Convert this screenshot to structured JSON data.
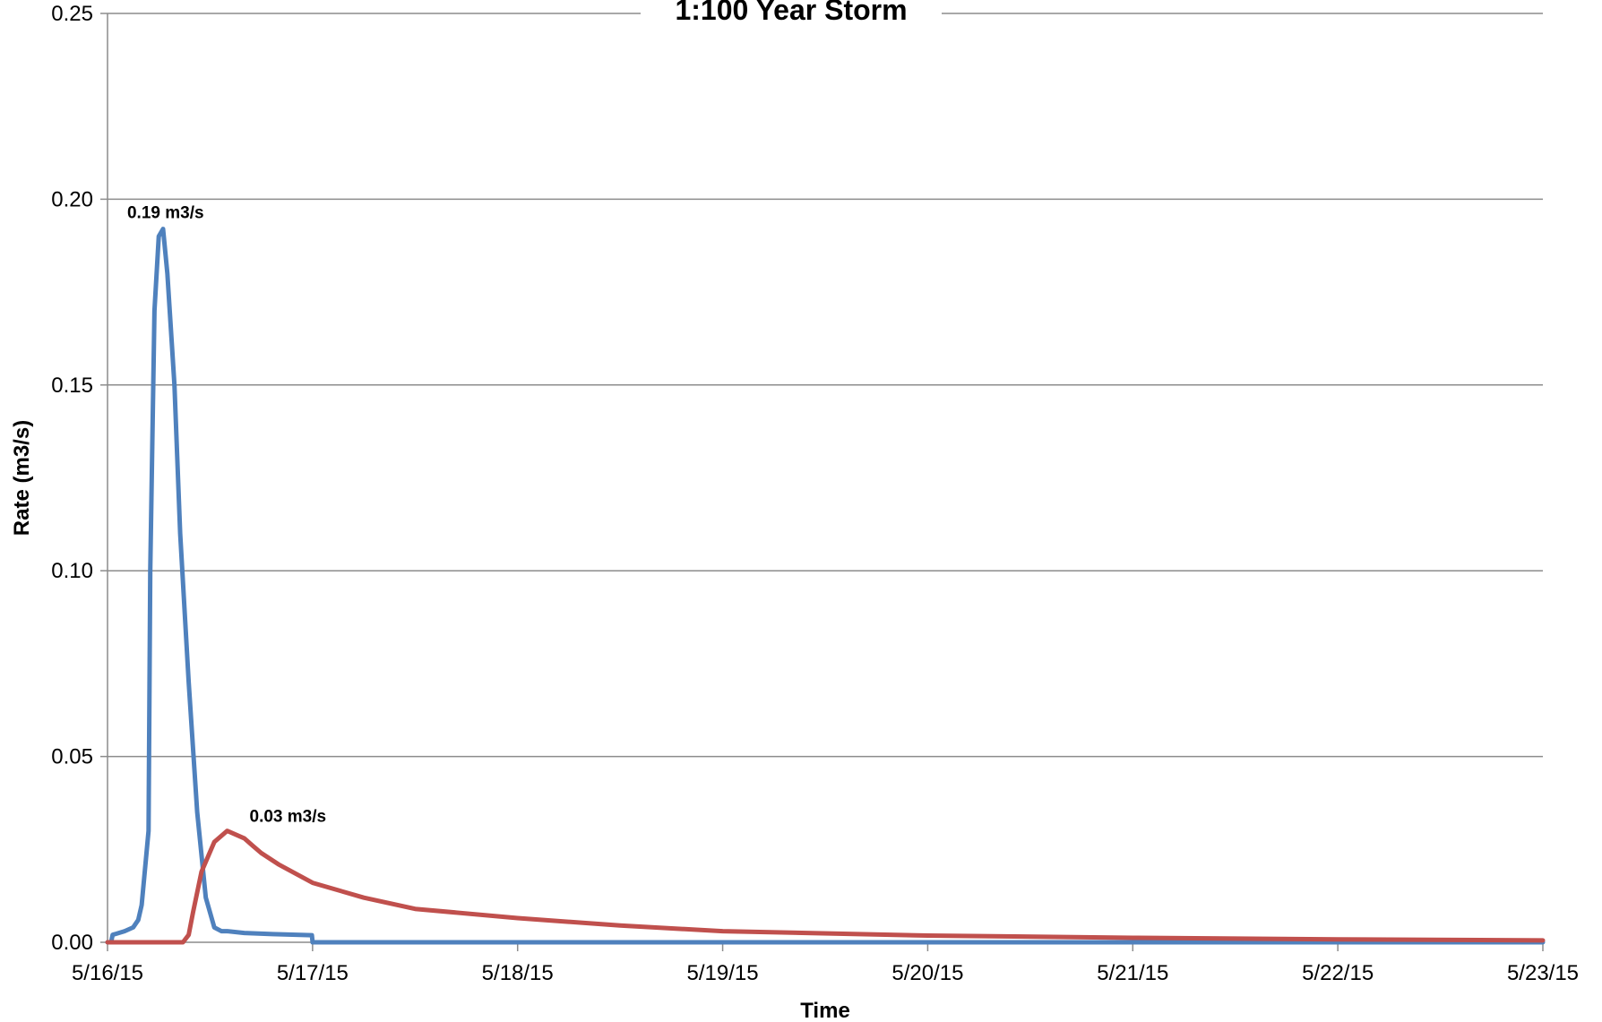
{
  "chart_data": {
    "type": "line",
    "title": "1:100 Year Storm",
    "xlabel": "Time",
    "ylabel": "Rate (m3/s)",
    "x_ticks": [
      "5/16/15",
      "5/17/15",
      "5/18/15",
      "5/19/15",
      "5/20/15",
      "5/21/15",
      "5/22/15",
      "5/23/15"
    ],
    "xlim": [
      "5/16/15",
      "5/23/15"
    ],
    "y_ticks": [
      "0.00",
      "0.05",
      "0.10",
      "0.15",
      "0.20",
      "0.25"
    ],
    "ylim": [
      0,
      0.25
    ],
    "grid": "horizontal",
    "colors": {
      "series_1": "#4f81bd",
      "series_2": "#c0504d"
    },
    "series": [
      {
        "x": [
          "5/16/15 00:00",
          "5/16/15 00:25",
          "5/16/15 00:36",
          "5/16/15 02:00",
          "5/16/15 03:00",
          "5/16/15 03:36",
          "5/16/15 04:00",
          "5/16/15 04:48",
          "5/16/15 05:00",
          "5/16/15 05:30",
          "5/16/15 06:00",
          "5/16/15 06:30",
          "5/16/15 07:00",
          "5/16/15 07:50",
          "5/16/15 08:30",
          "5/16/15 09:30",
          "5/16/15 10:30",
          "5/16/15 11:30",
          "5/16/15 12:30",
          "5/16/15 13:20",
          "5/16/15 14:00",
          "5/16/15 16:00",
          "5/16/15 19:20",
          "5/16/15 23:55",
          "5/17/15 00:00",
          "5/23/15 00:00"
        ],
        "y": [
          0,
          0,
          0.002,
          0.003,
          0.004,
          0.006,
          0.01,
          0.03,
          0.1,
          0.17,
          0.19,
          0.192,
          0.18,
          0.15,
          0.11,
          0.07,
          0.035,
          0.012,
          0.004,
          0.003,
          0.003,
          0.0025,
          0.0022,
          0.0019,
          0,
          0
        ],
        "data_label": "0.19 m3/s",
        "data_label_x": "5/16/15 06:30",
        "data_label_y": 0.192
      },
      {
        "x": [
          "5/16/15 00:00",
          "5/16/15 08:50",
          "5/16/15 09:30",
          "5/16/15 10:00",
          "5/16/15 11:00",
          "5/16/15 12:30",
          "5/16/15 14:00",
          "5/16/15 16:00",
          "5/16/15 17:00",
          "5/16/15 18:00",
          "5/16/15 20:00",
          "5/17/15 00:00",
          "5/17/15 06:00",
          "5/17/15 12:00",
          "5/18/15 00:00",
          "5/18/15 12:00",
          "5/19/15 00:00",
          "5/20/15 00:00",
          "5/21/15 00:00",
          "5/22/15 00:00",
          "5/23/15 00:00"
        ],
        "y": [
          0,
          0,
          0.002,
          0.008,
          0.019,
          0.027,
          0.03,
          0.028,
          0.026,
          0.024,
          0.021,
          0.016,
          0.012,
          0.009,
          0.0065,
          0.0045,
          0.003,
          0.0018,
          0.0012,
          0.0008,
          0.0005
        ],
        "data_label": "0.03 m3/s",
        "data_label_x": "5/16/15 14:00",
        "data_label_y": 0.03
      }
    ]
  }
}
